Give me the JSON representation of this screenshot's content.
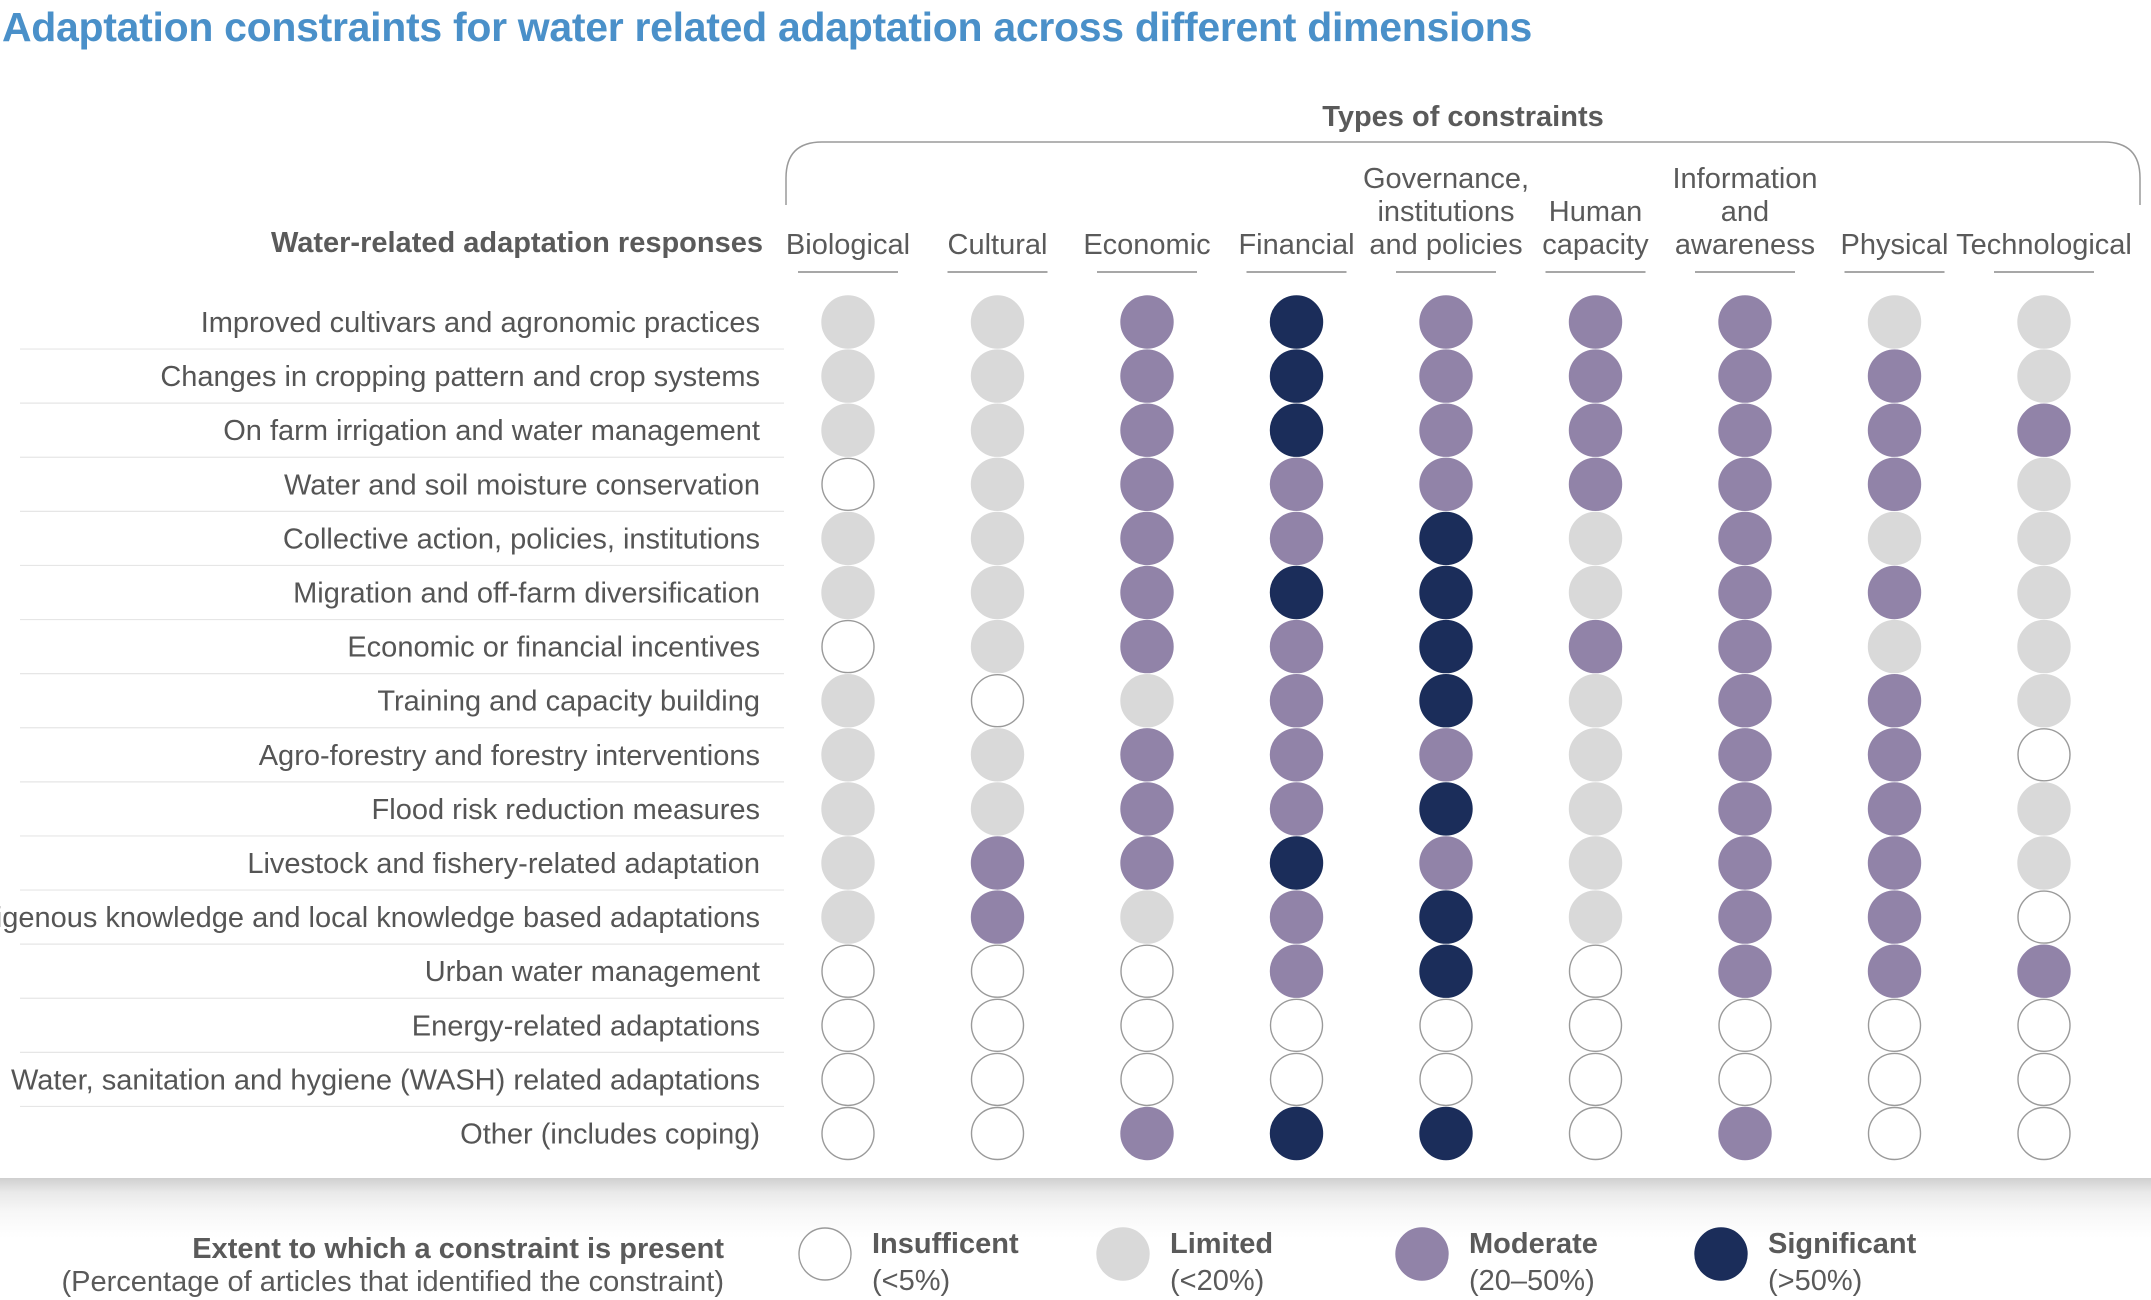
{
  "title": "Adaptation constraints for water related adaptation across different dimensions",
  "chart_data": {
    "type": "table",
    "column_group_label": "Types of constraints",
    "row_header": "Water-related adaptation responses",
    "columns": [
      "Biological",
      "Cultural",
      "Economic",
      "Financial",
      "Governance,\ninstitutions\nand policies",
      "Human\ncapacity",
      "Information\nand\nawareness",
      "Physical",
      "Technological"
    ],
    "rows": [
      "Improved cultivars and agronomic practices",
      "Changes in cropping pattern and crop systems",
      "On farm irrigation and water management",
      "Water and soil moisture conservation",
      "Collective action, policies, institutions",
      "Migration and off-farm diversification",
      "Economic or financial incentives",
      "Training and capacity building",
      "Agro-forestry and forestry interventions",
      "Flood risk reduction measures",
      "Livestock and fishery-related adaptation",
      "Indigenous knowledge and local knowledge based adaptations",
      "Urban water management",
      "Energy-related adaptations",
      "Water, sanitation and hygiene (WASH) related adaptations",
      "Other (includes coping)"
    ],
    "values": [
      [
        "Limited",
        "Limited",
        "Moderate",
        "Significant",
        "Moderate",
        "Moderate",
        "Moderate",
        "Limited",
        "Limited"
      ],
      [
        "Limited",
        "Limited",
        "Moderate",
        "Significant",
        "Moderate",
        "Moderate",
        "Moderate",
        "Moderate",
        "Limited"
      ],
      [
        "Limited",
        "Limited",
        "Moderate",
        "Significant",
        "Moderate",
        "Moderate",
        "Moderate",
        "Moderate",
        "Moderate"
      ],
      [
        "Insufficent",
        "Limited",
        "Moderate",
        "Moderate",
        "Moderate",
        "Moderate",
        "Moderate",
        "Moderate",
        "Limited"
      ],
      [
        "Limited",
        "Limited",
        "Moderate",
        "Moderate",
        "Significant",
        "Limited",
        "Moderate",
        "Limited",
        "Limited"
      ],
      [
        "Limited",
        "Limited",
        "Moderate",
        "Significant",
        "Significant",
        "Limited",
        "Moderate",
        "Moderate",
        "Limited"
      ],
      [
        "Insufficent",
        "Limited",
        "Moderate",
        "Moderate",
        "Significant",
        "Moderate",
        "Moderate",
        "Limited",
        "Limited"
      ],
      [
        "Limited",
        "Insufficent",
        "Limited",
        "Moderate",
        "Significant",
        "Limited",
        "Moderate",
        "Moderate",
        "Limited"
      ],
      [
        "Limited",
        "Limited",
        "Moderate",
        "Moderate",
        "Moderate",
        "Limited",
        "Moderate",
        "Moderate",
        "Insufficent"
      ],
      [
        "Limited",
        "Limited",
        "Moderate",
        "Moderate",
        "Significant",
        "Limited",
        "Moderate",
        "Moderate",
        "Limited"
      ],
      [
        "Limited",
        "Moderate",
        "Moderate",
        "Significant",
        "Moderate",
        "Limited",
        "Moderate",
        "Moderate",
        "Limited"
      ],
      [
        "Limited",
        "Moderate",
        "Limited",
        "Moderate",
        "Significant",
        "Limited",
        "Moderate",
        "Moderate",
        "Insufficent"
      ],
      [
        "Insufficent",
        "Insufficent",
        "Insufficent",
        "Moderate",
        "Significant",
        "Insufficent",
        "Moderate",
        "Moderate",
        "Moderate"
      ],
      [
        "Insufficent",
        "Insufficent",
        "Insufficent",
        "Insufficent",
        "Insufficent",
        "Insufficent",
        "Insufficent",
        "Insufficent",
        "Insufficent"
      ],
      [
        "Insufficent",
        "Insufficent",
        "Insufficent",
        "Insufficent",
        "Insufficent",
        "Insufficent",
        "Insufficent",
        "Insufficent",
        "Insufficent"
      ],
      [
        "Insufficent",
        "Insufficent",
        "Moderate",
        "Significant",
        "Significant",
        "Insufficent",
        "Moderate",
        "Insufficent",
        "Insufficent"
      ]
    ],
    "levels": [
      {
        "name": "Insufficent",
        "range": "(<5%)",
        "fill": "#ffffff",
        "stroke": "#9a9a9a"
      },
      {
        "name": "Limited",
        "range": "(<20%)",
        "fill": "#d9d9d9",
        "stroke": "#d9d9d9"
      },
      {
        "name": "Moderate",
        "range": "(20–50%)",
        "fill": "#9183a8",
        "stroke": "#9183a8"
      },
      {
        "name": "Significant",
        "range": "(>50%)",
        "fill": "#1b2d5a",
        "stroke": "#1b2d5a"
      }
    ],
    "legend_title": "Extent to which a constraint is present",
    "legend_subtitle": "(Percentage of articles that identified the constraint)"
  }
}
